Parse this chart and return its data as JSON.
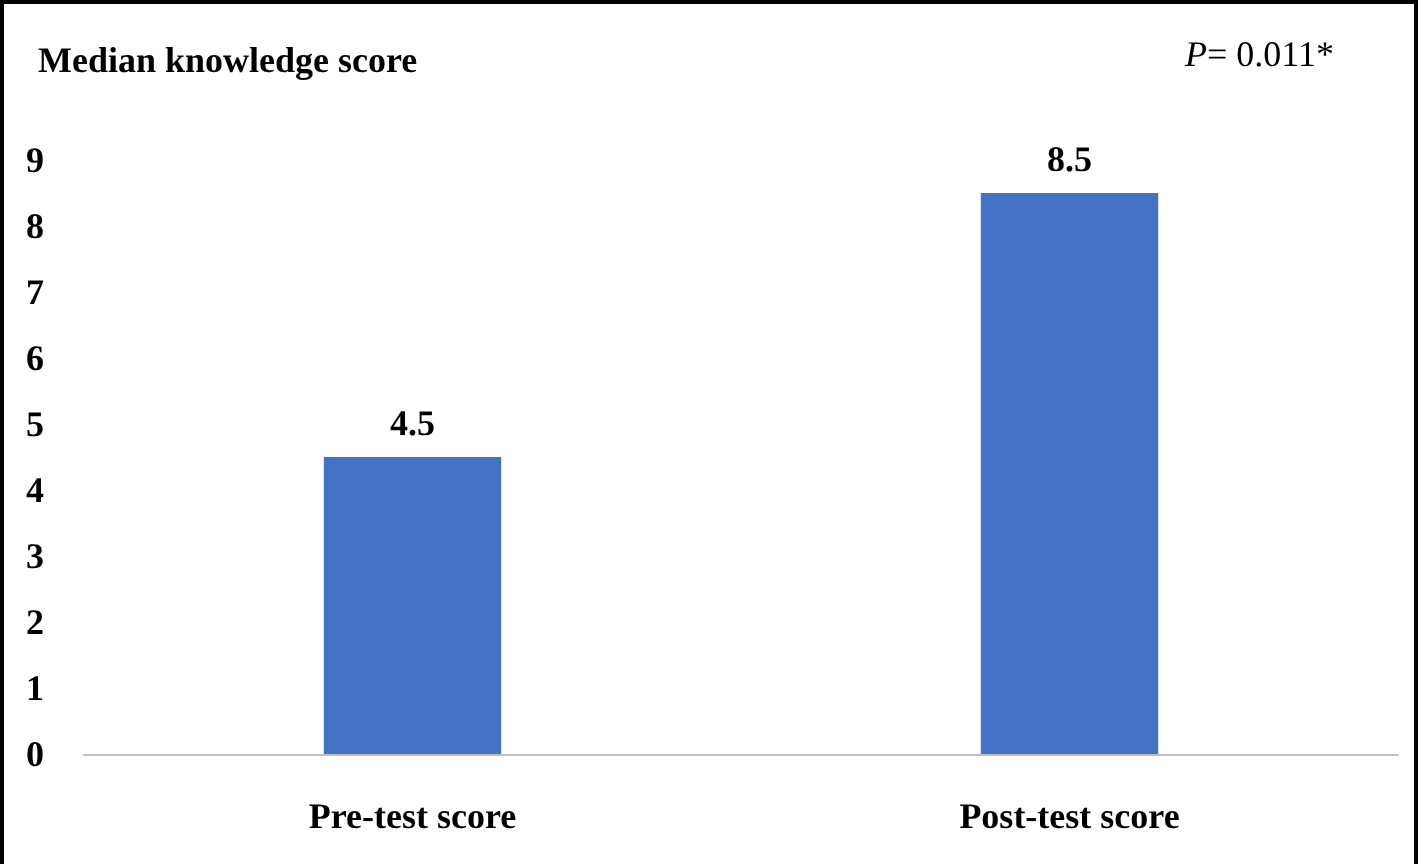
{
  "chart_data": {
    "type": "bar",
    "title": "Median knowledge score",
    "categories": [
      "Pre-test score",
      "Post-test score"
    ],
    "values": [
      4.5,
      8.5
    ],
    "color": "#4472c4",
    "ylim": [
      0,
      9
    ],
    "yticks": [
      0,
      1,
      2,
      3,
      4,
      5,
      6,
      7,
      8,
      9
    ],
    "grid": false,
    "data_labels": true,
    "annotations": [
      "P= 0.011*"
    ]
  }
}
